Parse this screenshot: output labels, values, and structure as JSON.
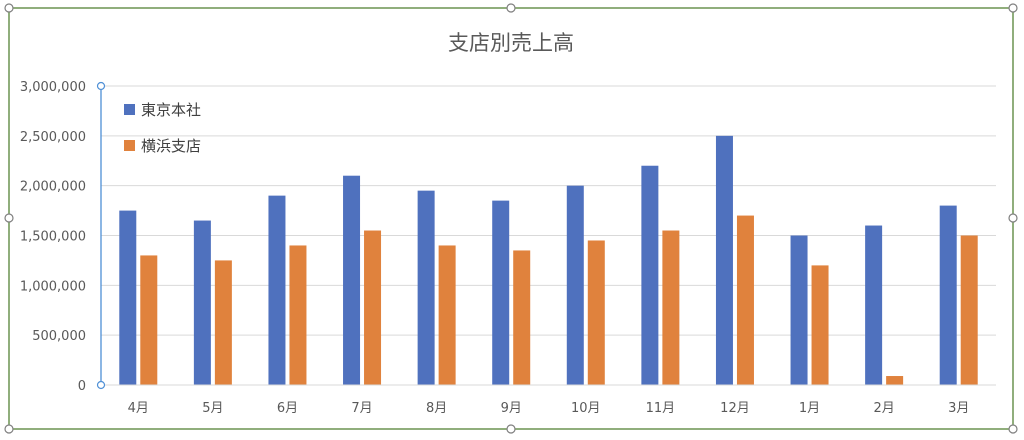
{
  "chart_data": {
    "type": "bar",
    "title": "支店別売上高",
    "categories": [
      "4月",
      "5月",
      "6月",
      "7月",
      "8月",
      "9月",
      "10月",
      "11月",
      "12月",
      "1月",
      "2月",
      "3月"
    ],
    "series": [
      {
        "name": "東京本社",
        "color": "#4f71be",
        "values": [
          1750000,
          1650000,
          1900000,
          2100000,
          1950000,
          1850000,
          2000000,
          2200000,
          2500000,
          1500000,
          1600000,
          1800000
        ]
      },
      {
        "name": "横浜支店",
        "color": "#e0823d",
        "values": [
          1300000,
          1250000,
          1400000,
          1550000,
          1400000,
          1350000,
          1450000,
          1550000,
          1700000,
          1200000,
          90000,
          1500000
        ]
      }
    ],
    "ylim": [
      0,
      3000000
    ],
    "yticks": [
      0,
      500000,
      1000000,
      1500000,
      2000000,
      2500000,
      3000000
    ],
    "ytick_labels": [
      "0",
      "500,000",
      "1,000,000",
      "1,500,000",
      "2,000,000",
      "2,500,000",
      "3,000,000"
    ],
    "grid": true,
    "legend_position": "top-left"
  }
}
